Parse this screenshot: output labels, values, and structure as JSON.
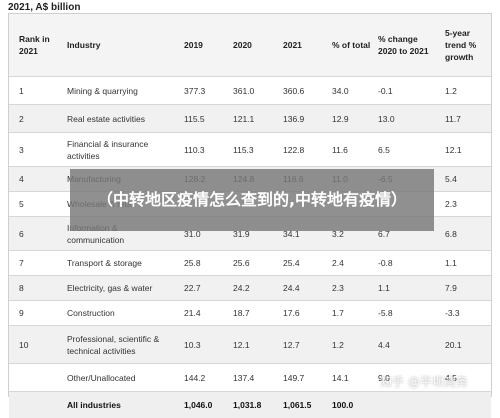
{
  "caption": "2021, A$ billion",
  "headers": {
    "rank": "Rank in 2021",
    "industry": "Industry",
    "y2019": "2019",
    "y2020": "2020",
    "y2021": "2021",
    "pct_total": "% of total",
    "change": "% change 2020 to 2021",
    "trend": "5-year trend % growth"
  },
  "rows": [
    {
      "rank": "1",
      "industry": "Mining & quarrying",
      "y2019": "377.3",
      "y2020": "361.0",
      "y2021": "360.6",
      "pct": "34.0",
      "chg": "-0.1",
      "trend": "1.2"
    },
    {
      "rank": "2",
      "industry": "Real estate activities",
      "y2019": "115.5",
      "y2020": "121.1",
      "y2021": "136.9",
      "pct": "12.9",
      "chg": "13.0",
      "trend": "11.7"
    },
    {
      "rank": "3",
      "industry": "Financial & insurance activities",
      "y2019": "110.3",
      "y2020": "115.3",
      "y2021": "122.8",
      "pct": "11.6",
      "chg": "6.5",
      "trend": "12.1"
    },
    {
      "rank": "4",
      "industry": "Manufacturing",
      "y2019": "128.2",
      "y2020": "124.8",
      "y2021": "116.6",
      "pct": "11.0",
      "chg": "-6.5",
      "trend": "5.4"
    },
    {
      "rank": "5",
      "industry": "Wholesale & retail",
      "y2019": "",
      "y2020": "",
      "y2021": "",
      "pct": "",
      "chg": "",
      "trend": "2.3"
    },
    {
      "rank": "6",
      "industry": "Information & communication",
      "y2019": "31.0",
      "y2020": "31.9",
      "y2021": "34.1",
      "pct": "3.2",
      "chg": "6.7",
      "trend": "6.8"
    },
    {
      "rank": "7",
      "industry": "Transport & storage",
      "y2019": "25.8",
      "y2020": "25.6",
      "y2021": "25.4",
      "pct": "2.4",
      "chg": "-0.8",
      "trend": "1.1"
    },
    {
      "rank": "8",
      "industry": "Electricity, gas & water",
      "y2019": "22.7",
      "y2020": "24.2",
      "y2021": "24.4",
      "pct": "2.3",
      "chg": "1.1",
      "trend": "7.9"
    },
    {
      "rank": "9",
      "industry": "Construction",
      "y2019": "21.4",
      "y2020": "18.7",
      "y2021": "17.6",
      "pct": "1.7",
      "chg": "-5.8",
      "trend": "-3.3"
    },
    {
      "rank": "10",
      "industry": "Professional, scientific & technical activities",
      "y2019": "10.3",
      "y2020": "12.1",
      "y2021": "12.7",
      "pct": "1.2",
      "chg": "4.4",
      "trend": "20.1"
    },
    {
      "rank": "",
      "industry": "Other/Unallocated",
      "y2019": "144.2",
      "y2020": "137.4",
      "y2021": "149.7",
      "pct": "14.1",
      "chg": "9.0",
      "trend": "4.5"
    },
    {
      "rank": "",
      "industry": "All industries",
      "y2019": "1,046.0",
      "y2020": "1,031.8",
      "y2021": "1,061.5",
      "pct": "100.0",
      "chg": "",
      "trend": ""
    }
  ],
  "overlay_title": "（中转地区疫情怎么查到的,中转地有疫情）",
  "watermark": "知乎 @平坝商务"
}
